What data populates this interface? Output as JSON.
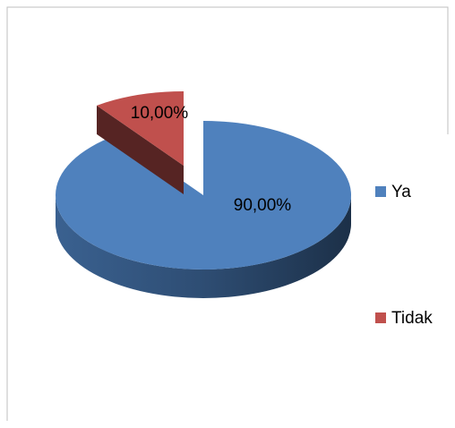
{
  "chart_data": {
    "type": "pie",
    "categories": [
      "Ya",
      "Tidak"
    ],
    "values": [
      90,
      10
    ],
    "value_labels": [
      "90,00%",
      "10,00%"
    ],
    "colors": [
      "#4f81bd",
      "#c0504d"
    ],
    "legend": "right"
  }
}
